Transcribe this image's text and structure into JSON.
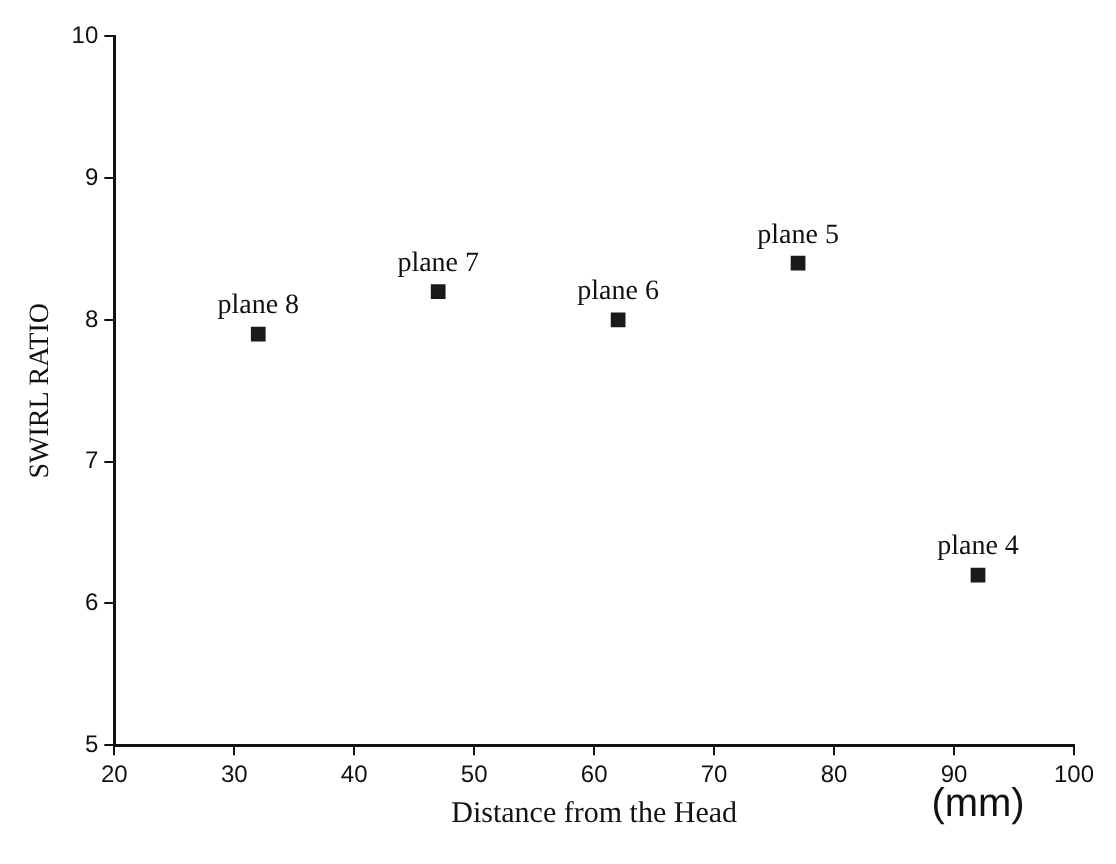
{
  "chart_data": {
    "type": "scatter",
    "xlabel": "Distance from the Head",
    "ylabel": "SWIRL RATIO",
    "x": [
      32,
      47,
      62,
      77,
      92
    ],
    "series": [
      {
        "color": "#1a1a1a",
        "values": [
          7.9,
          8.2,
          8.0,
          8.4,
          6.2
        ]
      }
    ],
    "xlim": [
      20,
      100
    ],
    "xticks": [
      20,
      30,
      40,
      50,
      60,
      70,
      80,
      90,
      100
    ],
    "ylim": [
      5,
      10
    ],
    "yticks": [
      5,
      6,
      7,
      8,
      9,
      10
    ],
    "grid": false,
    "legend": false,
    "marker": "square",
    "annotations": [
      {
        "text": "plane 8",
        "x": 32,
        "y": 7.9
      },
      {
        "text": "plane 7",
        "x": 47,
        "y": 8.2
      },
      {
        "text": "plane 6",
        "x": 62,
        "y": 8.0
      },
      {
        "text": "plane 5",
        "x": 77,
        "y": 8.4
      },
      {
        "text": "plane 4",
        "x": 92,
        "y": 6.2
      },
      "(mm)"
    ]
  }
}
